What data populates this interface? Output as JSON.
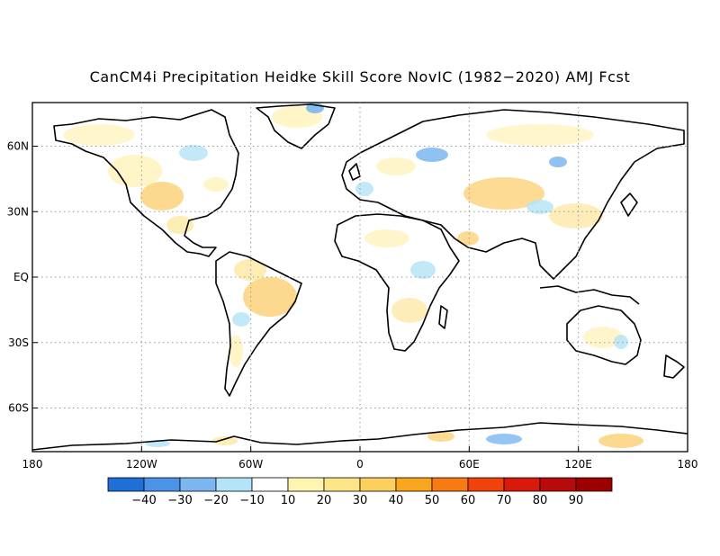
{
  "title": "CanCM4i Precipitation Heidke Skill Score NovIC (1982−2020) AMJ Fcst",
  "axes": {
    "lat_labels": [
      "60N",
      "30N",
      "EQ",
      "30S",
      "60S"
    ],
    "lon_labels": [
      "180",
      "120W",
      "60W",
      "0",
      "60E",
      "120E",
      "180"
    ]
  },
  "colorbar": {
    "labels": [
      "−40",
      "−30",
      "−20",
      "−10",
      "10",
      "20",
      "30",
      "40",
      "50",
      "60",
      "70",
      "80",
      "90"
    ],
    "colors": [
      "#1f6fd9",
      "#4a93e6",
      "#7bb6f0",
      "#b4e4f7",
      "#ffffff",
      "#fff5b0",
      "#fde488",
      "#fccf5e",
      "#faa51e",
      "#f97a10",
      "#f0420a",
      "#d9190a",
      "#b80a0a",
      "#9c0000"
    ]
  },
  "chart_data": {
    "type": "heatmap",
    "title": "CanCM4i Precipitation Heidke Skill Score NovIC (1982−2020) AMJ Fcst",
    "xlim": [
      -180,
      180
    ],
    "ylim": [
      -80,
      80
    ],
    "x_ticks": [
      -180,
      -120,
      -60,
      0,
      60,
      120,
      180
    ],
    "y_ticks": [
      60,
      30,
      0,
      -30,
      -60
    ],
    "grid": true,
    "color_levels": [
      -40,
      -30,
      -20,
      -10,
      10,
      20,
      30,
      40,
      50,
      60,
      70,
      80,
      90
    ]
  }
}
